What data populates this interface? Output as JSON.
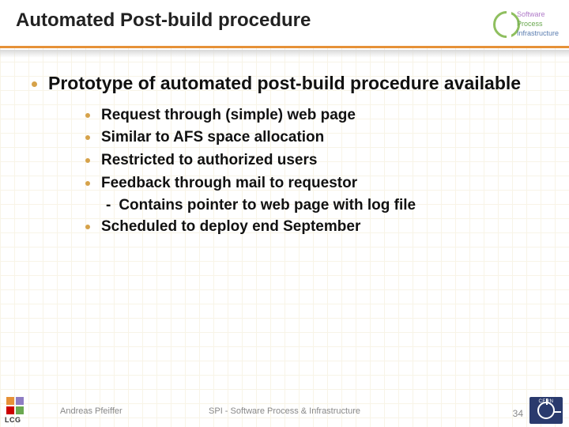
{
  "colors": {
    "accent_bullet": "#d6a24a",
    "hr": "#e69138",
    "text": "#111111",
    "footer_text": "#888888",
    "cern_bg": "#2a3a6d",
    "grid": "#f3ead0",
    "lcg_squares": [
      "#e69138",
      "#8e7cc3",
      "#cc0000",
      "#6aa84f"
    ],
    "spi_lines": [
      "#b07bc9",
      "#6aa84f",
      "#5a7db0"
    ]
  },
  "typography": {
    "title_fontsize": 24,
    "main_fontsize": 23,
    "sub_fontsize": 19,
    "footer_fontsize": 11,
    "font_family": "Arial",
    "weight": "bold"
  },
  "header": {
    "title": "Automated Post-build procedure",
    "spi": {
      "line1": "Software",
      "line2": "Process",
      "line3": "Infrastructure"
    }
  },
  "main": {
    "heading": "Prototype of automated post-build procedure available",
    "bullets": [
      "Request through (simple) web page",
      "Similar to AFS space allocation",
      "Restricted to authorized users",
      "Feedback through mail to requestor"
    ],
    "sub_of_4": "Contains pointer to web page with log file",
    "bullet5": "Scheduled to deploy end September"
  },
  "footer": {
    "lcg_label": "LCG",
    "author": "Andreas Pfeiffer",
    "center": "SPI - Software Process & Infrastructure",
    "page": "34",
    "cern": "CERN"
  }
}
